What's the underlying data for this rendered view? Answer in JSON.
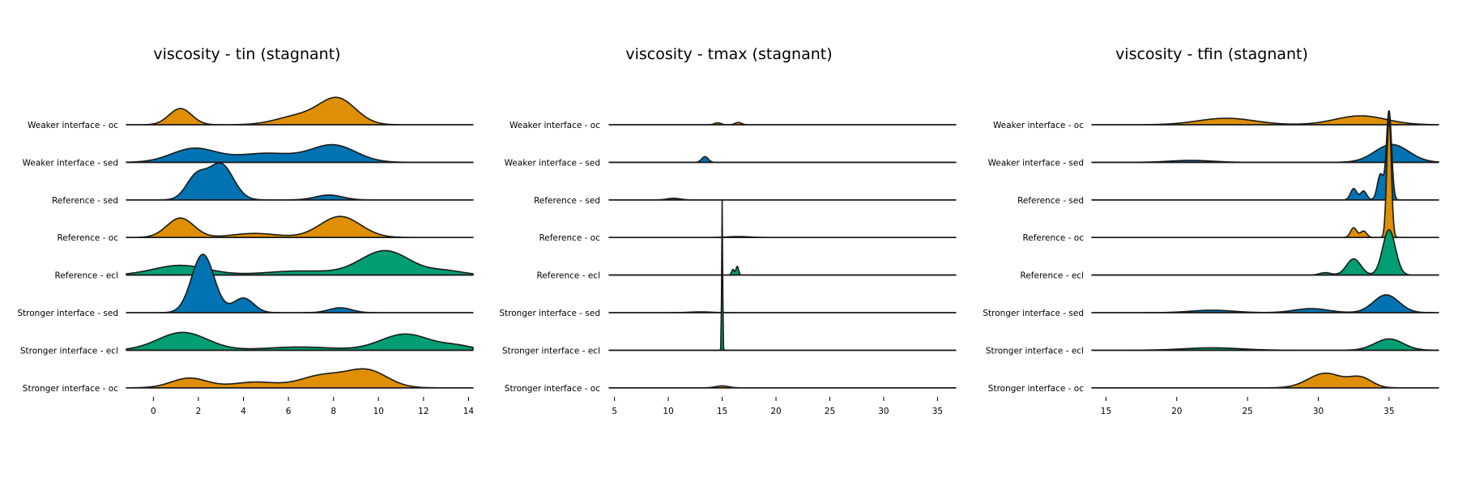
{
  "colors": {
    "sed": "#0173b2",
    "oc": "#de8f05",
    "ecl": "#029e73",
    "line": "#1a1a1a"
  },
  "chart_data": [
    {
      "type": "ridgeline",
      "title": "viscosity - tin (stagnant)",
      "xlim": [
        -1.2,
        14.2
      ],
      "xticks": [
        0,
        2,
        4,
        6,
        8,
        10,
        12,
        14
      ],
      "rows": [
        {
          "label": "Weaker interface - oc",
          "group": "oc",
          "scale": 1,
          "peaks": [
            [
              1.2,
              1.0,
              0.5
            ],
            [
              6.5,
              0.55,
              1.0
            ],
            [
              8.2,
              1.55,
              0.8
            ]
          ]
        },
        {
          "label": "Weaker interface - sed",
          "group": "sed",
          "scale": 1,
          "peaks": [
            [
              1.8,
              0.85,
              1.0
            ],
            [
              5.0,
              0.55,
              1.3
            ],
            [
              8.0,
              1.05,
              1.0
            ]
          ]
        },
        {
          "label": "Reference - sed",
          "group": "sed",
          "scale": 1,
          "peaks": [
            [
              1.9,
              1.4,
              0.45
            ],
            [
              3.0,
              2.2,
              0.55
            ],
            [
              7.8,
              0.3,
              0.6
            ]
          ]
        },
        {
          "label": "Reference - oc",
          "group": "oc",
          "scale": 1,
          "peaks": [
            [
              1.2,
              1.2,
              0.6
            ],
            [
              4.5,
              0.25,
              1.0
            ],
            [
              8.3,
              1.3,
              0.9
            ]
          ]
        },
        {
          "label": "Reference - ecl",
          "group": "ecl",
          "scale": 1,
          "peaks": [
            [
              1.2,
              0.6,
              1.2
            ],
            [
              6.5,
              0.25,
              1.5
            ],
            [
              10.3,
              1.5,
              1.1
            ],
            [
              13.0,
              0.25,
              0.8
            ]
          ]
        },
        {
          "label": "Stronger interface - sed",
          "group": "sed",
          "scale": 1,
          "peaks": [
            [
              2.2,
              3.6,
              0.5
            ],
            [
              4.0,
              0.9,
              0.45
            ],
            [
              8.3,
              0.3,
              0.5
            ]
          ]
        },
        {
          "label": "Stronger interface - ecl",
          "group": "ecl",
          "scale": 1,
          "peaks": [
            [
              1.3,
              1.1,
              1.1
            ],
            [
              6.5,
              0.2,
              1.5
            ],
            [
              11.2,
              1.0,
              1.1
            ],
            [
              13.5,
              0.25,
              0.7
            ]
          ]
        },
        {
          "label": "Stronger interface - oc",
          "group": "oc",
          "scale": 1,
          "peaks": [
            [
              1.6,
              0.6,
              0.8
            ],
            [
              4.5,
              0.35,
              1.0
            ],
            [
              7.5,
              0.75,
              1.0
            ],
            [
              9.5,
              1.05,
              0.9
            ]
          ]
        }
      ]
    },
    {
      "type": "ridgeline",
      "title": "viscosity - tmax (stagnant)",
      "xlim": [
        4.5,
        36.7
      ],
      "xticks": [
        5,
        10,
        15,
        20,
        25,
        30,
        35
      ],
      "rows": [
        {
          "label": "Weaker interface - oc",
          "group": "oc",
          "scale": 1,
          "peaks": [
            [
              14.6,
              0.12,
              0.3
            ],
            [
              16.5,
              0.14,
              0.3
            ]
          ]
        },
        {
          "label": "Weaker interface - sed",
          "group": "sed",
          "scale": 1,
          "peaks": [
            [
              13.4,
              0.35,
              0.3
            ]
          ]
        },
        {
          "label": "Reference - sed",
          "group": "sed",
          "scale": 1,
          "peaks": [
            [
              10.5,
              0.1,
              0.6
            ]
          ]
        },
        {
          "label": "Reference - oc",
          "group": "oc",
          "scale": 1,
          "peaks": [
            [
              16.5,
              0.06,
              1.0
            ]
          ]
        },
        {
          "label": "Reference - ecl",
          "group": "ecl",
          "scale": 1,
          "peaks": [
            [
              16.0,
              0.35,
              0.12
            ],
            [
              16.4,
              0.55,
              0.12
            ]
          ]
        },
        {
          "label": "Stronger interface - sed",
          "group": "sed",
          "scale": 1,
          "peaks": [
            [
              13.0,
              0.05,
              1.0
            ]
          ]
        },
        {
          "label": "Stronger interface - ecl",
          "group": "ecl",
          "scale": 1,
          "peaks": [
            [
              15.0,
              9.3,
              0.045
            ]
          ]
        },
        {
          "label": "Stronger interface - oc",
          "group": "oc",
          "scale": 1,
          "peaks": [
            [
              15.0,
              0.12,
              0.6
            ]
          ]
        }
      ]
    },
    {
      "type": "ridgeline",
      "title": "viscosity - tfin (stagnant)",
      "xlim": [
        14,
        38.5
      ],
      "xticks": [
        15,
        20,
        25,
        30,
        35
      ],
      "rows": [
        {
          "label": "Weaker interface - oc",
          "group": "oc",
          "scale": 1,
          "peaks": [
            [
              23.5,
              0.4,
              2.0
            ],
            [
              33.0,
              0.55,
              1.8
            ]
          ]
        },
        {
          "label": "Weaker interface - sed",
          "group": "sed",
          "scale": 1,
          "peaks": [
            [
              21.0,
              0.12,
              1.5
            ],
            [
              35.2,
              1.1,
              1.2
            ]
          ]
        },
        {
          "label": "Reference - sed",
          "group": "sed",
          "scale": 1,
          "peaks": [
            [
              32.5,
              0.7,
              0.22
            ],
            [
              33.2,
              0.55,
              0.22
            ],
            [
              34.4,
              1.6,
              0.22
            ],
            [
              35.0,
              5.5,
              0.18
            ]
          ]
        },
        {
          "label": "Reference - oc",
          "group": "oc",
          "scale": 1,
          "peaks": [
            [
              32.5,
              0.6,
              0.22
            ],
            [
              33.2,
              0.4,
              0.22
            ],
            [
              35.0,
              7.4,
              0.16
            ]
          ]
        },
        {
          "label": "Reference - ecl",
          "group": "ecl",
          "scale": 1,
          "peaks": [
            [
              30.5,
              0.15,
              0.4
            ],
            [
              32.5,
              1.0,
              0.5
            ],
            [
              35.0,
              2.8,
              0.45
            ]
          ]
        },
        {
          "label": "Stronger interface - sed",
          "group": "sed",
          "scale": 1,
          "peaks": [
            [
              22.5,
              0.15,
              1.5
            ],
            [
              29.5,
              0.25,
              1.2
            ],
            [
              34.8,
              1.1,
              0.9
            ]
          ]
        },
        {
          "label": "Stronger interface - ecl",
          "group": "ecl",
          "scale": 1,
          "peaks": [
            [
              22.5,
              0.15,
              2.0
            ],
            [
              35.0,
              0.7,
              1.0
            ]
          ]
        },
        {
          "label": "Stronger interface - oc",
          "group": "oc",
          "scale": 1,
          "peaks": [
            [
              30.5,
              0.9,
              1.2
            ],
            [
              33.0,
              0.6,
              0.8
            ]
          ]
        }
      ]
    }
  ]
}
